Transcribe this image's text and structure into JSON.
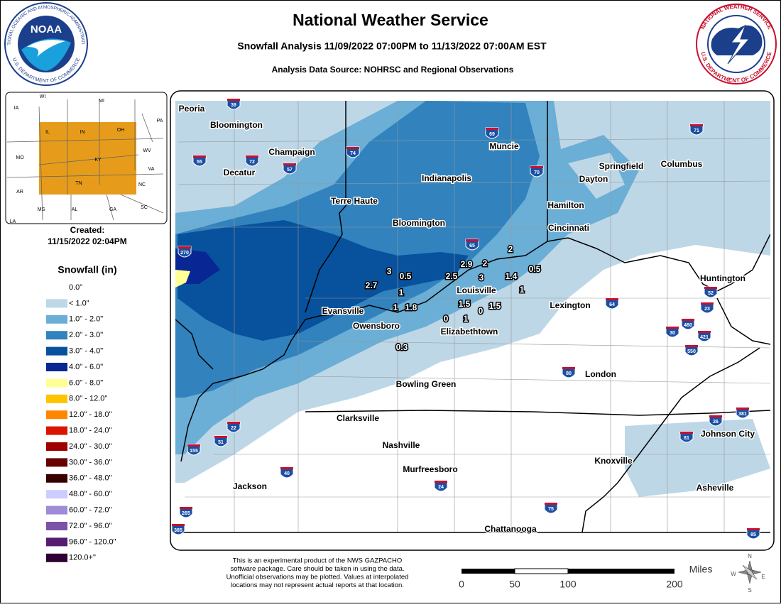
{
  "header": {
    "title": "National Weather Service",
    "subtitle": "Snowfall Analysis 11/09/2022 07:00PM to 11/13/2022 07:00AM EST",
    "source": "Analysis Data Source: NOHRSC and Regional Observations"
  },
  "logo_left": {
    "top": "NATIONAL OCEANIC AND ATMOSPHERIC ADMINISTRATION",
    "center": "NOAA",
    "bottom": "U.S. DEPARTMENT OF COMMERCE"
  },
  "logo_right": {
    "top": "NATIONAL WEATHER SERVICE",
    "bottom": "U.S. DEPARTMENT OF COMMERCE"
  },
  "inset_states": [
    "WI",
    "MI",
    "IA",
    "IL",
    "IN",
    "OH",
    "PA",
    "MO",
    "KY",
    "WV",
    "VA",
    "AR",
    "TN",
    "NC",
    "MS",
    "AL",
    "GA",
    "SC",
    "LA"
  ],
  "created": {
    "label": "Created:",
    "date": "11/15/2022 02:04PM"
  },
  "legend": {
    "title": "Snowfall (in)",
    "items": [
      {
        "label": "0.0\"",
        "color": "#ffffff"
      },
      {
        "label": "< 1.0\"",
        "color": "#bdd7e7"
      },
      {
        "label": "1.0\" - 2.0\"",
        "color": "#6baed6"
      },
      {
        "label": "2.0\" - 3.0\"",
        "color": "#3182bd"
      },
      {
        "label": "3.0\" - 4.0\"",
        "color": "#08519c"
      },
      {
        "label": "4.0\" - 6.0\"",
        "color": "#082694"
      },
      {
        "label": "6.0\" - 8.0\"",
        "color": "#ffff96"
      },
      {
        "label": "8.0\" - 12.0\"",
        "color": "#ffc400"
      },
      {
        "label": "12.0\" - 18.0\"",
        "color": "#ff8700"
      },
      {
        "label": "18.0\" - 24.0\"",
        "color": "#db1400"
      },
      {
        "label": "24.0\" - 30.0\"",
        "color": "#9e0000"
      },
      {
        "label": "30.0\" - 36.0\"",
        "color": "#690000"
      },
      {
        "label": "36.0\" - 48.0\"",
        "color": "#360000"
      },
      {
        "label": "48.0\" - 60.0\"",
        "color": "#ccccff"
      },
      {
        "label": "60.0\" - 72.0\"",
        "color": "#9f8cd8"
      },
      {
        "label": "72.0\" - 96.0\"",
        "color": "#7c52a5"
      },
      {
        "label": "96.0\" - 120.0\"",
        "color": "#561c72"
      },
      {
        "label": "120.0+\"",
        "color": "#2e0033"
      }
    ]
  },
  "cities": [
    "Peoria",
    "Bloomington",
    "Champaign",
    "Decatur",
    "Terre Haute",
    "Bloomington",
    "Indianapolis",
    "Muncie",
    "Springfield",
    "Columbus",
    "Dayton",
    "Hamilton",
    "Cincinnati",
    "Huntington",
    "Louisville",
    "Lexington",
    "Evansville",
    "Owensboro",
    "Elizabethtown",
    "London",
    "Bowling Green",
    "Clarksville",
    "Nashville",
    "Knoxville",
    "Johnson City",
    "Murfreesboro",
    "Jackson",
    "Asheville",
    "Chattanooga"
  ],
  "observations": [
    3,
    0.5,
    2.7,
    1,
    2.9,
    2,
    2.5,
    3,
    1.4,
    0.5,
    2,
    1,
    1,
    1.8,
    1.5,
    1.5,
    0,
    1,
    0,
    0.3
  ],
  "interstates": [
    "39",
    "69",
    "71",
    "55",
    "72",
    "74",
    "57",
    "70",
    "270",
    "65",
    "64",
    "52",
    "23",
    "30",
    "460",
    "421",
    "550",
    "80",
    "22",
    "51",
    "155",
    "40",
    "24",
    "75",
    "26",
    "81",
    "381",
    "265",
    "385",
    "85"
  ],
  "disclaimer": [
    "This is an experimental product of the NWS GAZPACHO",
    "software package. Care should be taken in using the data.",
    "Unofficial observations may be plotted. Values at interpolated",
    "locations may not represent actual reports at that location."
  ],
  "scale": {
    "unit": "Miles",
    "ticks": [
      0,
      50,
      100,
      200
    ]
  },
  "compass": [
    "N",
    "E",
    "S",
    "W"
  ]
}
